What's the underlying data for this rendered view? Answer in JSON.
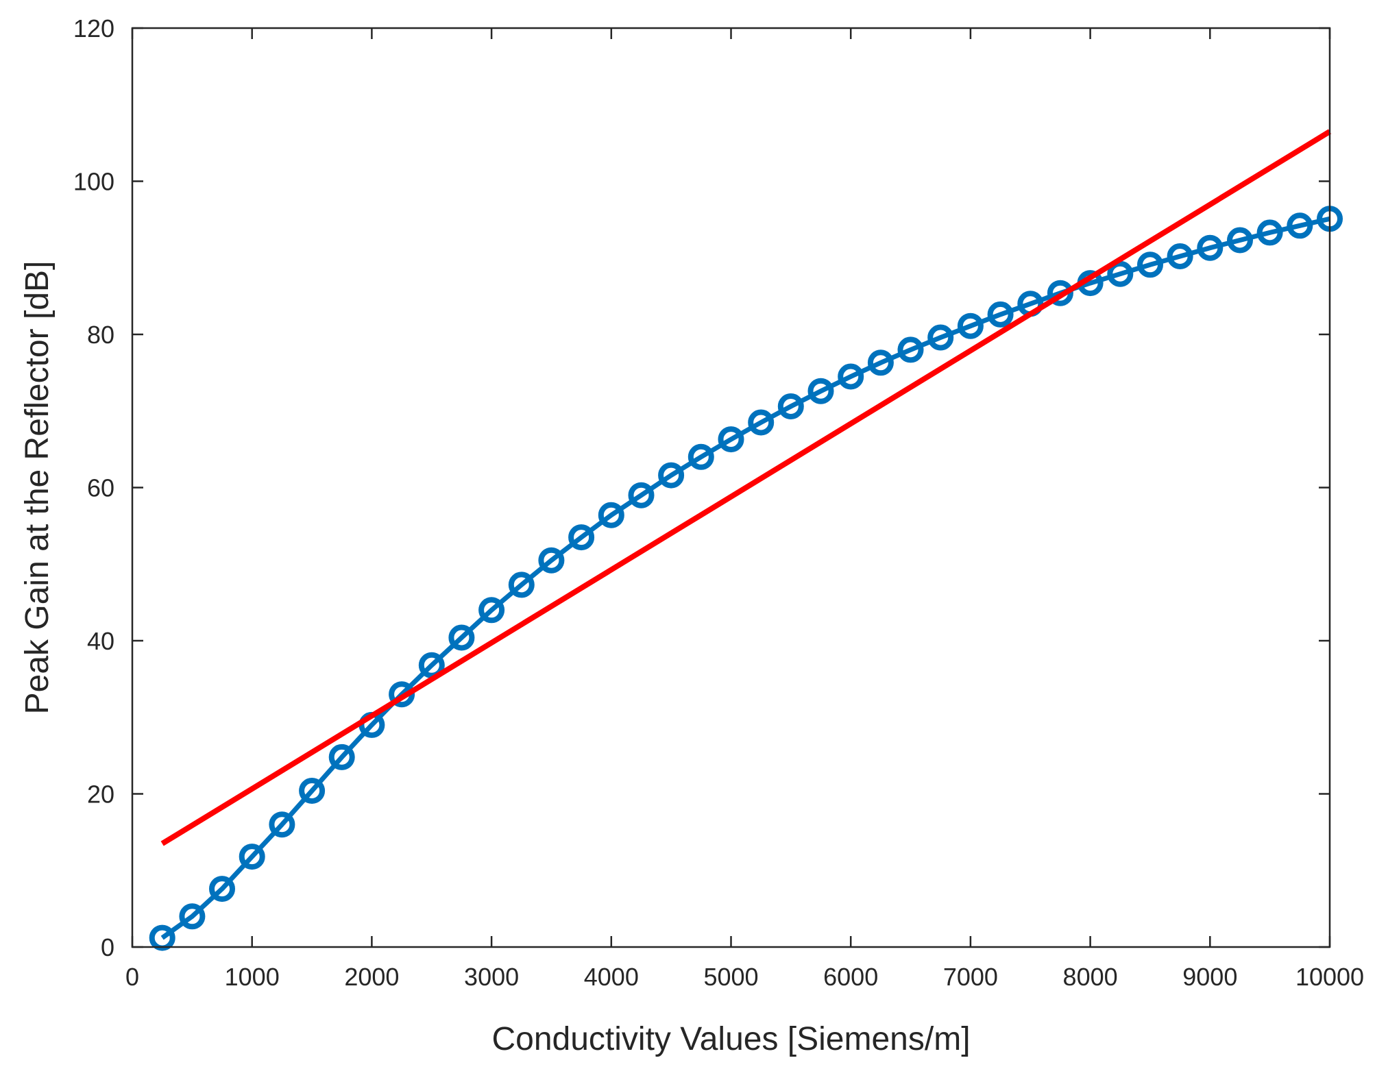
{
  "chart_data": {
    "type": "line",
    "title": "",
    "xlabel": "Conductivity Values [Siemens/m]",
    "ylabel": "Peak Gain at the Reflector [dB]",
    "xlim": [
      0,
      10000
    ],
    "ylim": [
      0,
      120
    ],
    "xticks": [
      0,
      1000,
      2000,
      3000,
      4000,
      5000,
      6000,
      7000,
      8000,
      9000,
      10000
    ],
    "yticks": [
      0,
      20,
      40,
      60,
      80,
      100,
      120
    ],
    "grid": false,
    "box": true,
    "series": [
      {
        "kind": "line-markers",
        "marker": "circle",
        "color": "#0072BD",
        "x": [
          250,
          500,
          750,
          1000,
          1250,
          1500,
          1750,
          2000,
          2250,
          2500,
          2750,
          3000,
          3250,
          3500,
          3750,
          4000,
          4250,
          4500,
          4750,
          5000,
          5250,
          5500,
          5750,
          6000,
          6250,
          6500,
          6750,
          7000,
          7250,
          7500,
          7750,
          8000,
          8250,
          8500,
          8750,
          9000,
          9250,
          9500,
          9750,
          10000
        ],
        "y": [
          1.2,
          4.0,
          7.6,
          11.8,
          16.0,
          20.4,
          24.8,
          29.0,
          33.0,
          36.8,
          40.4,
          44.0,
          47.3,
          50.5,
          53.5,
          56.4,
          59.0,
          61.6,
          64.0,
          66.3,
          68.5,
          70.6,
          72.6,
          74.5,
          76.3,
          78.0,
          79.6,
          81.1,
          82.6,
          84.0,
          85.4,
          86.7,
          87.9,
          89.1,
          90.2,
          91.3,
          92.3,
          93.3,
          94.2,
          95.1
        ]
      },
      {
        "kind": "line",
        "color": "#FF0000",
        "x": [
          250,
          10000
        ],
        "y": [
          13.5,
          106.5
        ]
      }
    ]
  }
}
